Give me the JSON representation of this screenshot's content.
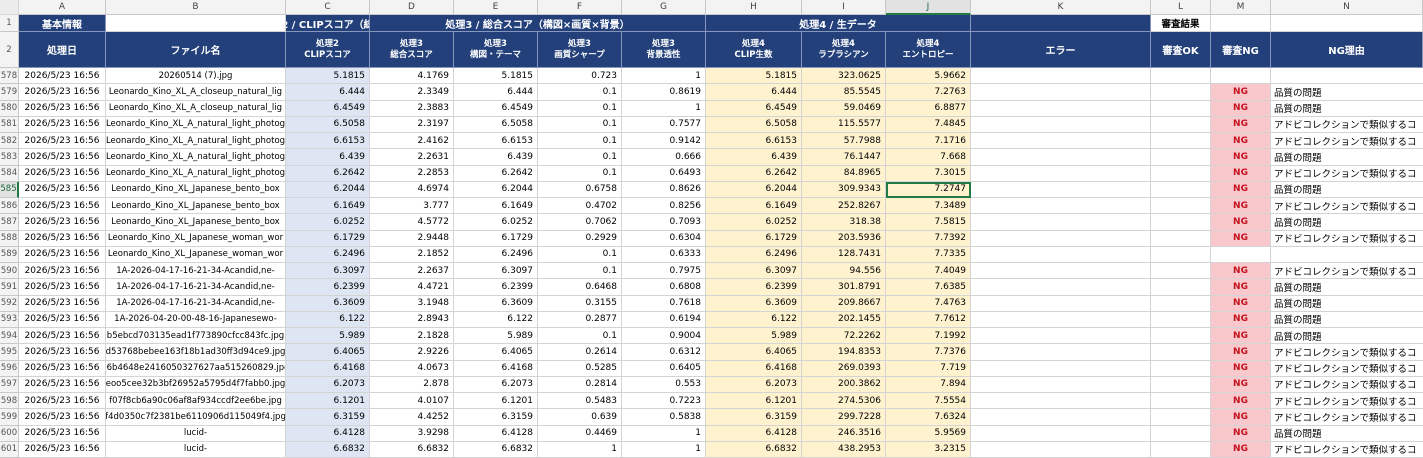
{
  "columns": [
    "A",
    "B",
    "C",
    "D",
    "E",
    "F",
    "G",
    "H",
    "I",
    "J",
    "K",
    "L",
    "M",
    "N"
  ],
  "selected_column": "J",
  "selected_row": "585",
  "header_row1": {
    "row": "1",
    "basic_info": "基本情報",
    "proc2": "処理2 / CLIPスコア（総回・",
    "proc3": "処理3 / 総合スコア（構図×画質×背景）",
    "proc4": "処理4 / 生データ",
    "review_result": "審査結果"
  },
  "header_row2": {
    "row": "2",
    "date": "処理日",
    "filename": "ファイル名",
    "c": [
      "処理2",
      "CLIPスコア"
    ],
    "d": [
      "処理3",
      "総合スコア"
    ],
    "e": [
      "処理3",
      "構図・テーマ"
    ],
    "f": [
      "処理3",
      "画質シャープ"
    ],
    "g": [
      "処理3",
      "背景透性"
    ],
    "h": [
      "処理4",
      "CLIP生数"
    ],
    "i": [
      "処理4",
      "ラプラシアン"
    ],
    "j": [
      "処理4",
      "エントロピー"
    ],
    "error": "エラー",
    "ok": "審査OK",
    "ngcol": "審査NG",
    "reason": "NG理由"
  },
  "rows": [
    {
      "n": "578",
      "date": "2026/5/23 16:56",
      "file": "20260514 (7).jpg",
      "c": "5.1815",
      "d": "4.1769",
      "e": "5.1815",
      "f": "0.723",
      "g": "1",
      "h": "5.1815",
      "i": "323.0625",
      "j": "5.9662",
      "ng": "",
      "reason": ""
    },
    {
      "n": "579",
      "date": "2026/5/23 16:56",
      "file": "Leonardo_Kino_XL_A_closeup_natural_lig",
      "c": "6.444",
      "d": "2.3349",
      "e": "6.444",
      "f": "0.1",
      "g": "0.8619",
      "h": "6.444",
      "i": "85.5545",
      "j": "7.2763",
      "ng": "NG",
      "reason": "品質の問題"
    },
    {
      "n": "580",
      "date": "2026/5/23 16:56",
      "file": "Leonardo_Kino_XL_A_closeup_natural_lig",
      "c": "6.4549",
      "d": "2.3883",
      "e": "6.4549",
      "f": "0.1",
      "g": "1",
      "h": "6.4549",
      "i": "59.0469",
      "j": "6.8877",
      "ng": "NG",
      "reason": "品質の問題"
    },
    {
      "n": "581",
      "date": "2026/5/23 16:56",
      "file": "Leonardo_Kino_XL_A_natural_light_photog",
      "c": "6.5058",
      "d": "2.3197",
      "e": "6.5058",
      "f": "0.1",
      "g": "0.7577",
      "h": "6.5058",
      "i": "115.5577",
      "j": "7.4845",
      "ng": "NG",
      "reason": "アドビコレクションで類似するコ"
    },
    {
      "n": "582",
      "date": "2026/5/23 16:56",
      "file": "Leonardo_Kino_XL_A_natural_light_photog",
      "c": "6.6153",
      "d": "2.4162",
      "e": "6.6153",
      "f": "0.1",
      "g": "0.9142",
      "h": "6.6153",
      "i": "57.7988",
      "j": "7.1716",
      "ng": "NG",
      "reason": "アドビコレクションで類似するコ"
    },
    {
      "n": "583",
      "date": "2026/5/23 16:56",
      "file": "Leonardo_Kino_XL_A_natural_light_photog",
      "c": "6.439",
      "d": "2.2631",
      "e": "6.439",
      "f": "0.1",
      "g": "0.666",
      "h": "6.439",
      "i": "76.1447",
      "j": "7.668",
      "ng": "NG",
      "reason": "品質の問題"
    },
    {
      "n": "584",
      "date": "2026/5/23 16:56",
      "file": "Leonardo_Kino_XL_A_natural_light_photog",
      "c": "6.2642",
      "d": "2.2853",
      "e": "6.2642",
      "f": "0.1",
      "g": "0.6493",
      "h": "6.2642",
      "i": "84.8965",
      "j": "7.3015",
      "ng": "NG",
      "reason": "アドビコレクションで類似するコ"
    },
    {
      "n": "585",
      "date": "2026/5/23 16:56",
      "file": "Leonardo_Kino_XL_Japanese_bento_box",
      "c": "6.2044",
      "d": "4.6974",
      "e": "6.2044",
      "f": "0.6758",
      "g": "0.8626",
      "h": "6.2044",
      "i": "309.9343",
      "j": "7.2747",
      "ng": "NG",
      "reason": "品質の問題"
    },
    {
      "n": "586",
      "date": "2026/5/23 16:56",
      "file": "Leonardo_Kino_XL_Japanese_bento_box",
      "c": "6.1649",
      "d": "3.777",
      "e": "6.1649",
      "f": "0.4702",
      "g": "0.8256",
      "h": "6.1649",
      "i": "252.8267",
      "j": "7.3489",
      "ng": "NG",
      "reason": "アドビコレクションで類似するコ"
    },
    {
      "n": "587",
      "date": "2026/5/23 16:56",
      "file": "Leonardo_Kino_XL_Japanese_bento_box",
      "c": "6.0252",
      "d": "4.5772",
      "e": "6.0252",
      "f": "0.7062",
      "g": "0.7093",
      "h": "6.0252",
      "i": "318.38",
      "j": "7.5815",
      "ng": "NG",
      "reason": "品質の問題"
    },
    {
      "n": "588",
      "date": "2026/5/23 16:56",
      "file": "Leonardo_Kino_XL_Japanese_woman_wor",
      "c": "6.1729",
      "d": "2.9448",
      "e": "6.1729",
      "f": "0.2929",
      "g": "0.6304",
      "h": "6.1729",
      "i": "203.5936",
      "j": "7.7392",
      "ng": "NG",
      "reason": "アドビコレクションで類似するコ"
    },
    {
      "n": "589",
      "date": "2026/5/23 16:56",
      "file": "Leonardo_Kino_XL_Japanese_woman_wor",
      "c": "6.2496",
      "d": "2.1852",
      "e": "6.2496",
      "f": "0.1",
      "g": "0.6333",
      "h": "6.2496",
      "i": "128.7431",
      "j": "7.7335",
      "ng": "",
      "reason": ""
    },
    {
      "n": "590",
      "date": "2026/5/23 16:56",
      "file": "1A-2026-04-17-16-21-34-Acandid,ne-",
      "c": "6.3097",
      "d": "2.2637",
      "e": "6.3097",
      "f": "0.1",
      "g": "0.7975",
      "h": "6.3097",
      "i": "94.556",
      "j": "7.4049",
      "ng": "NG",
      "reason": "アドビコレクションで類似するコ"
    },
    {
      "n": "591",
      "date": "2026/5/23 16:56",
      "file": "1A-2026-04-17-16-21-34-Acandid,ne-",
      "c": "6.2399",
      "d": "4.4721",
      "e": "6.2399",
      "f": "0.6468",
      "g": "0.6808",
      "h": "6.2399",
      "i": "301.8791",
      "j": "7.6385",
      "ng": "NG",
      "reason": "品質の問題"
    },
    {
      "n": "592",
      "date": "2026/5/23 16:56",
      "file": "1A-2026-04-17-16-21-34-Acandid,ne-",
      "c": "6.3609",
      "d": "3.1948",
      "e": "6.3609",
      "f": "0.3155",
      "g": "0.7618",
      "h": "6.3609",
      "i": "209.8667",
      "j": "7.4763",
      "ng": "NG",
      "reason": "品質の問題"
    },
    {
      "n": "593",
      "date": "2026/5/23 16:56",
      "file": "1A-2026-04-20-00-48-16-Japanesewo-",
      "c": "6.122",
      "d": "2.8943",
      "e": "6.122",
      "f": "0.2877",
      "g": "0.6194",
      "h": "6.122",
      "i": "202.1455",
      "j": "7.7612",
      "ng": "NG",
      "reason": "品質の問題"
    },
    {
      "n": "594",
      "date": "2026/5/23 16:56",
      "file": "b5ebcd703135ead1f773890cfcc843fc.jpg",
      "c": "5.989",
      "d": "2.1828",
      "e": "5.989",
      "f": "0.1",
      "g": "0.9004",
      "h": "5.989",
      "i": "72.2262",
      "j": "7.1992",
      "ng": "NG",
      "reason": "品質の問題"
    },
    {
      "n": "595",
      "date": "2026/5/23 16:56",
      "file": "d53768bebee163f18b1ad30ff3d94ce9.jpg",
      "c": "6.4065",
      "d": "2.9226",
      "e": "6.4065",
      "f": "0.2614",
      "g": "0.6312",
      "h": "6.4065",
      "i": "194.8353",
      "j": "7.7376",
      "ng": "NG",
      "reason": "アドビコレクションで類似するコ"
    },
    {
      "n": "596",
      "date": "2026/5/23 16:56",
      "file": "e6b4648e2416050327627aa515260829.jpg",
      "c": "6.4168",
      "d": "4.0673",
      "e": "6.4168",
      "f": "0.5285",
      "g": "0.6405",
      "h": "6.4168",
      "i": "269.0393",
      "j": "7.719",
      "ng": "NG",
      "reason": "アドビコレクションで類似するコ"
    },
    {
      "n": "597",
      "date": "2026/5/23 16:56",
      "file": "eoo5cee32b3bf26952a5795d4f7fabb0.jpg",
      "c": "6.2073",
      "d": "2.878",
      "e": "6.2073",
      "f": "0.2814",
      "g": "0.553",
      "h": "6.2073",
      "i": "200.3862",
      "j": "7.894",
      "ng": "NG",
      "reason": "アドビコレクションで類似するコ"
    },
    {
      "n": "598",
      "date": "2026/5/23 16:56",
      "file": "f07f8cb6a90c06af8af934ccdf2ee6be.jpg",
      "c": "6.1201",
      "d": "4.0107",
      "e": "6.1201",
      "f": "0.5483",
      "g": "0.7223",
      "h": "6.1201",
      "i": "274.5306",
      "j": "7.5554",
      "ng": "NG",
      "reason": "アドビコレクションで類似するコ"
    },
    {
      "n": "599",
      "date": "2026/5/23 16:56",
      "file": "f4d0350c7f2381be6110906d115049f4.jpg",
      "c": "6.3159",
      "d": "4.4252",
      "e": "6.3159",
      "f": "0.639",
      "g": "0.5838",
      "h": "6.3159",
      "i": "299.7228",
      "j": "7.6324",
      "ng": "NG",
      "reason": "アドビコレクションで類似するコ"
    },
    {
      "n": "600",
      "date": "2026/5/23 16:56",
      "file": "lucid-",
      "c": "6.4128",
      "d": "3.9298",
      "e": "6.4128",
      "f": "0.4469",
      "g": "1",
      "h": "6.4128",
      "i": "246.3516",
      "j": "5.9569",
      "ng": "NG",
      "reason": "品質の問題"
    },
    {
      "n": "601",
      "date": "2026/5/23 16:56",
      "file": "lucid-",
      "c": "6.6832",
      "d": "6.6832",
      "e": "6.6832",
      "f": "1",
      "g": "1",
      "h": "6.6832",
      "i": "438.2953",
      "j": "3.2315",
      "ng": "NG",
      "reason": "アドビコレクションで類似するコ"
    }
  ]
}
